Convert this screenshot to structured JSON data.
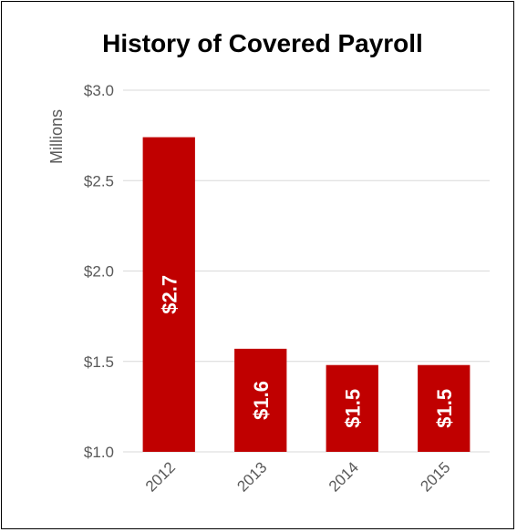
{
  "chart_data": {
    "type": "bar",
    "title": "History of Covered Payroll",
    "ylabel": "Millions",
    "xlabel": "",
    "categories": [
      "2012",
      "2013",
      "2014",
      "2015"
    ],
    "values": [
      2.74,
      1.57,
      1.48,
      1.48
    ],
    "data_labels": [
      "$2.7",
      "$1.6",
      "$1.5",
      "$1.5"
    ],
    "yticks": [
      1.0,
      1.5,
      2.0,
      2.5,
      3.0
    ],
    "ytick_labels": [
      "$1.0",
      "$1.5",
      "$2.0",
      "$2.5",
      "$3.0"
    ],
    "ylim": [
      1.0,
      3.0
    ],
    "grid": true,
    "legend": "none",
    "bar_color": "#c00000",
    "grid_color": "#d9d9d9"
  }
}
